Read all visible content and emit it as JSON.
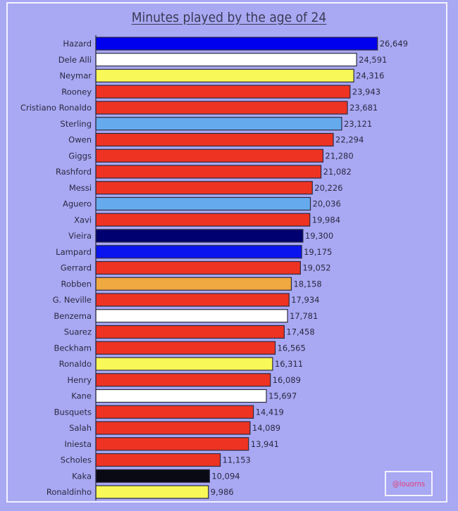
{
  "chart_data": {
    "type": "bar",
    "orientation": "horizontal",
    "title": "Minutes played by the age of 24",
    "categories": [
      "Hazard",
      "Dele Alli",
      "Neymar",
      "Rooney",
      "Cristiano Ronaldo",
      "Sterling",
      "Owen",
      "Giggs",
      "Rashford",
      "Messi",
      "Aguero",
      "Xavi",
      "Vieira",
      "Lampard",
      "Gerrard",
      "Robben",
      "G. Neville",
      "Benzema",
      "Suarez",
      "Beckham",
      "Ronaldo",
      "Henry",
      "Kane",
      "Busquets",
      "Salah",
      "Iniesta",
      "Scholes",
      "Kaka",
      "Ronaldinho"
    ],
    "values": [
      26649,
      24591,
      24316,
      23943,
      23681,
      23121,
      22294,
      21280,
      21082,
      20226,
      20036,
      19984,
      19300,
      19175,
      19052,
      18158,
      17934,
      17781,
      17458,
      16565,
      16311,
      16089,
      15697,
      14419,
      14089,
      13941,
      11153,
      10094,
      9986
    ],
    "labels": [
      "26,649",
      "24,591",
      "24,316",
      "23,943",
      "23,681",
      "23,121",
      "22,294",
      "21,280",
      "21,082",
      "20,226",
      "20,036",
      "19,984",
      "19,300",
      "19,175",
      "19,052",
      "18,158",
      "17,934",
      "17,781",
      "17,458",
      "16,565",
      "16,311",
      "16,089",
      "15,697",
      "14,419",
      "14,089",
      "13,941",
      "11,153",
      "10,094",
      "9,986"
    ],
    "colors": [
      "#0000ee",
      "#ffffff",
      "#f8f858",
      "#ee3322",
      "#ee3322",
      "#66aaee",
      "#ee3322",
      "#ee3322",
      "#ee3322",
      "#ee3322",
      "#66aaee",
      "#ee3322",
      "#000070",
      "#0a14ee",
      "#ee3322",
      "#f0a840",
      "#ee3322",
      "#ffffff",
      "#ee3322",
      "#ee3322",
      "#f8f858",
      "#ee3322",
      "#ffffff",
      "#ee3322",
      "#ee3322",
      "#ee3322",
      "#ee3322",
      "#0a0a14",
      "#f8f858"
    ],
    "grid": false,
    "legend": "none"
  },
  "watermark": "@louorns",
  "background": "#a9a8f3"
}
